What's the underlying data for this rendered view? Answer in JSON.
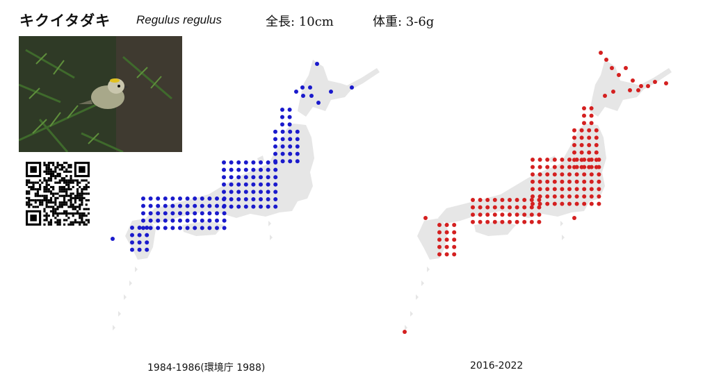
{
  "species": {
    "name_ja": "キクイタダキ",
    "name_sci": "Regulus regulus",
    "length": "全長: 10cm",
    "weight": "体重: 3-6g"
  },
  "maps": [
    {
      "caption": "1984-1986(環境庁 1988)",
      "dot_color": "#1a1acc"
    },
    {
      "caption": "2016-2022",
      "dot_color": "#d42020"
    }
  ],
  "land_color": "#e6e6e6"
}
